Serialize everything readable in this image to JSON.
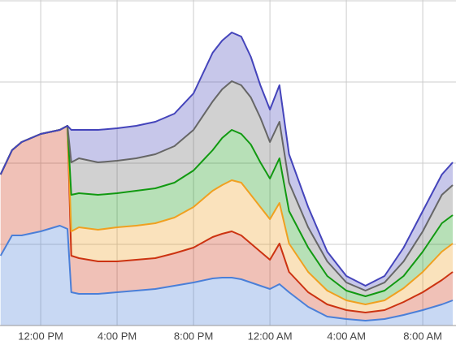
{
  "chart_data": {
    "type": "stacked_area",
    "x": [
      9.9,
      10.5,
      11,
      12,
      13,
      13.4,
      13.6,
      14,
      15,
      16,
      17,
      18,
      19,
      20,
      21,
      21.5,
      22,
      22.5,
      23,
      23.5,
      24,
      24.5,
      25,
      26,
      27,
      28,
      29,
      30,
      31,
      32,
      33,
      33.57
    ],
    "series": [
      {
        "color": "#4a7fd8",
        "values": [
          86,
          111,
          111,
          116,
          123,
          119,
          41,
          39,
          39,
          41,
          43,
          45,
          49,
          53,
          58,
          59,
          59,
          57,
          53,
          49,
          45,
          51,
          41,
          23,
          11,
          8,
          6,
          8,
          13,
          19,
          26,
          31
        ]
      },
      {
        "color": "#cc3311",
        "values": [
          100,
          105,
          115,
          120,
          118,
          127,
          45,
          44,
          40,
          38,
          38,
          38,
          40,
          43,
          51,
          54,
          57,
          54,
          48,
          42,
          36,
          50,
          25,
          18,
          15,
          11,
          10,
          11,
          16,
          22,
          30,
          35
        ]
      },
      {
        "color": "#f0a020",
        "values": [
          0,
          0,
          0,
          0,
          0,
          0,
          30,
          38,
          39,
          42,
          42,
          43,
          44,
          50,
          57,
          60,
          63,
          65,
          60,
          55,
          50,
          50,
          35,
          25,
          17,
          12,
          10,
          12,
          17,
          25,
          35,
          35
        ]
      },
      {
        "color": "#119911",
        "values": [
          0,
          0,
          0,
          0,
          0,
          0,
          45,
          42,
          43,
          42,
          43,
          43,
          43,
          45,
          50,
          58,
          62,
          60,
          62,
          55,
          50,
          55,
          40,
          30,
          18,
          12,
          10,
          12,
          15,
          25,
          35,
          35
        ]
      },
      {
        "color": "#666666",
        "values": [
          0,
          0,
          0,
          0,
          0,
          0,
          40,
          43,
          40,
          40,
          40,
          42,
          45,
          50,
          60,
          60,
          60,
          60,
          58,
          55,
          45,
          45,
          35,
          25,
          18,
          10,
          7,
          10,
          18,
          25,
          35,
          37
        ]
      },
      {
        "color": "#4444bb",
        "values": [
          0,
          0,
          0,
          0,
          0,
          0,
          40,
          35,
          40,
          40,
          40,
          40,
          40,
          45,
          60,
          60,
          60,
          60,
          50,
          40,
          40,
          45,
          35,
          25,
          12,
          8,
          6,
          8,
          17,
          25,
          25,
          28
        ]
      }
    ],
    "xlim": [
      9.87,
      33.57
    ],
    "xticks": [
      {
        "value": 12,
        "label": "12:00 PM"
      },
      {
        "value": 16,
        "label": "4:00 PM"
      },
      {
        "value": 20,
        "label": "8:00 PM"
      },
      {
        "value": 24,
        "label": "12:00 AM"
      },
      {
        "value": 28,
        "label": "4:00 AM"
      },
      {
        "value": 32,
        "label": "8:00 AM"
      }
    ],
    "ylim": [
      0,
      400
    ],
    "yticks": [
      100,
      200,
      300,
      400
    ],
    "grid": true
  }
}
